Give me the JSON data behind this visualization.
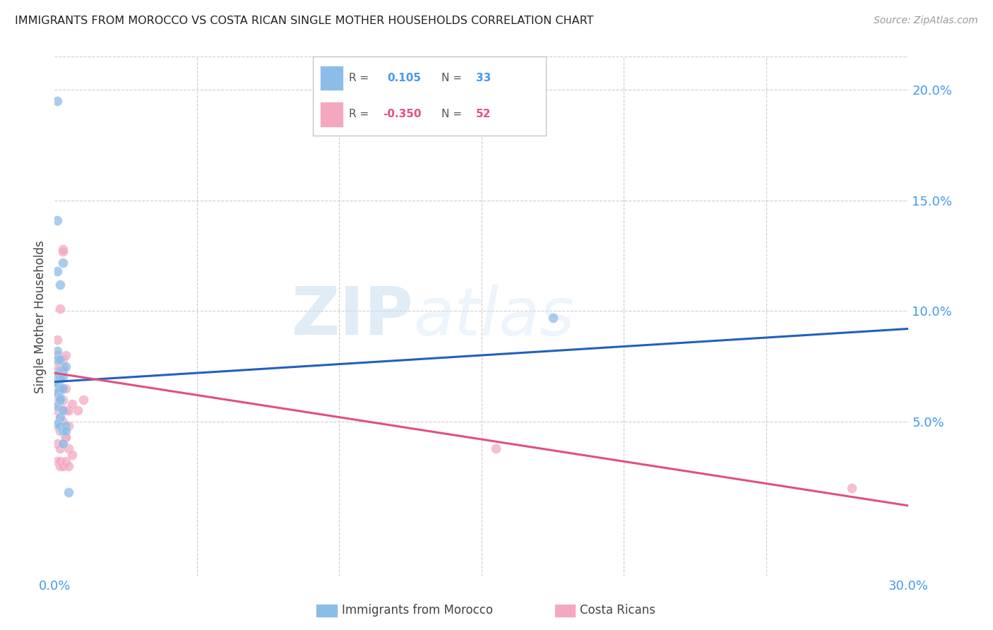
{
  "title": "IMMIGRANTS FROM MOROCCO VS COSTA RICAN SINGLE MOTHER HOUSEHOLDS CORRELATION CHART",
  "source": "Source: ZipAtlas.com",
  "ylabel": "Single Mother Households",
  "morocco_color": "#8bbde8",
  "costarica_color": "#f4a8c0",
  "morocco_line_color": "#2060c0",
  "costarica_line_color": "#e05080",
  "watermark_zip": "ZIP",
  "watermark_atlas": "atlas",
  "morocco_points": [
    [
      0.001,
      0.195
    ],
    [
      0.001,
      0.141
    ],
    [
      0.001,
      0.118
    ],
    [
      0.002,
      0.112
    ],
    [
      0.001,
      0.082
    ],
    [
      0.001,
      0.078
    ],
    [
      0.002,
      0.073
    ],
    [
      0.001,
      0.071
    ],
    [
      0.002,
      0.069
    ],
    [
      0.001,
      0.068
    ],
    [
      0.001,
      0.067
    ],
    [
      0.002,
      0.065
    ],
    [
      0.001,
      0.063
    ],
    [
      0.002,
      0.061
    ],
    [
      0.001,
      0.057
    ],
    [
      0.002,
      0.052
    ],
    [
      0.001,
      0.049
    ],
    [
      0.002,
      0.078
    ],
    [
      0.003,
      0.073
    ],
    [
      0.002,
      0.07
    ],
    [
      0.003,
      0.065
    ],
    [
      0.002,
      0.06
    ],
    [
      0.003,
      0.055
    ],
    [
      0.002,
      0.048
    ],
    [
      0.003,
      0.046
    ],
    [
      0.003,
      0.122
    ],
    [
      0.004,
      0.075
    ],
    [
      0.003,
      0.07
    ],
    [
      0.004,
      0.048
    ],
    [
      0.003,
      0.04
    ],
    [
      0.004,
      0.046
    ],
    [
      0.175,
      0.097
    ],
    [
      0.005,
      0.018
    ]
  ],
  "costarica_points": [
    [
      0.001,
      0.087
    ],
    [
      0.001,
      0.08
    ],
    [
      0.001,
      0.078
    ],
    [
      0.001,
      0.075
    ],
    [
      0.001,
      0.073
    ],
    [
      0.001,
      0.07
    ],
    [
      0.001,
      0.068
    ],
    [
      0.002,
      0.065
    ],
    [
      0.001,
      0.063
    ],
    [
      0.001,
      0.06
    ],
    [
      0.002,
      0.058
    ],
    [
      0.001,
      0.055
    ],
    [
      0.002,
      0.05
    ],
    [
      0.001,
      0.048
    ],
    [
      0.002,
      0.046
    ],
    [
      0.001,
      0.04
    ],
    [
      0.002,
      0.038
    ],
    [
      0.001,
      0.032
    ],
    [
      0.002,
      0.03
    ],
    [
      0.002,
      0.101
    ],
    [
      0.003,
      0.078
    ],
    [
      0.002,
      0.075
    ],
    [
      0.003,
      0.073
    ],
    [
      0.003,
      0.065
    ],
    [
      0.002,
      0.06
    ],
    [
      0.003,
      0.055
    ],
    [
      0.002,
      0.052
    ],
    [
      0.003,
      0.05
    ],
    [
      0.002,
      0.048
    ],
    [
      0.003,
      0.04
    ],
    [
      0.002,
      0.032
    ],
    [
      0.003,
      0.03
    ],
    [
      0.003,
      0.128
    ],
    [
      0.003,
      0.127
    ],
    [
      0.004,
      0.08
    ],
    [
      0.003,
      0.075
    ],
    [
      0.004,
      0.065
    ],
    [
      0.003,
      0.06
    ],
    [
      0.004,
      0.055
    ],
    [
      0.004,
      0.043
    ],
    [
      0.004,
      0.043
    ],
    [
      0.005,
      0.038
    ],
    [
      0.004,
      0.032
    ],
    [
      0.005,
      0.03
    ],
    [
      0.005,
      0.055
    ],
    [
      0.005,
      0.048
    ],
    [
      0.006,
      0.035
    ],
    [
      0.006,
      0.058
    ],
    [
      0.008,
      0.055
    ],
    [
      0.01,
      0.06
    ],
    [
      0.155,
      0.038
    ],
    [
      0.28,
      0.02
    ]
  ],
  "morocco_line": {
    "x0": 0.0,
    "y0": 0.068,
    "x1": 0.3,
    "y1": 0.092
  },
  "costarica_line": {
    "x0": 0.0,
    "y0": 0.072,
    "x1": 0.3,
    "y1": 0.012
  },
  "xlim": [
    0.0,
    0.3
  ],
  "ylim": [
    -0.02,
    0.215
  ],
  "ytick_vals": [
    0.05,
    0.1,
    0.15,
    0.2
  ],
  "ytick_labels": [
    "5.0%",
    "10.0%",
    "15.0%",
    "20.0%"
  ],
  "xtick_vals": [
    0.0,
    0.05,
    0.1,
    0.15,
    0.2,
    0.25,
    0.3
  ],
  "xtick_labels": [
    "0.0%",
    "",
    "",
    "",
    "",
    "",
    "30.0%"
  ],
  "legend_morocco_r": "0.105",
  "legend_morocco_n": "33",
  "legend_costarica_r": "-0.350",
  "legend_costarica_n": "52",
  "legend_label_morocco": "Immigrants from Morocco",
  "legend_label_costarica": "Costa Ricans"
}
